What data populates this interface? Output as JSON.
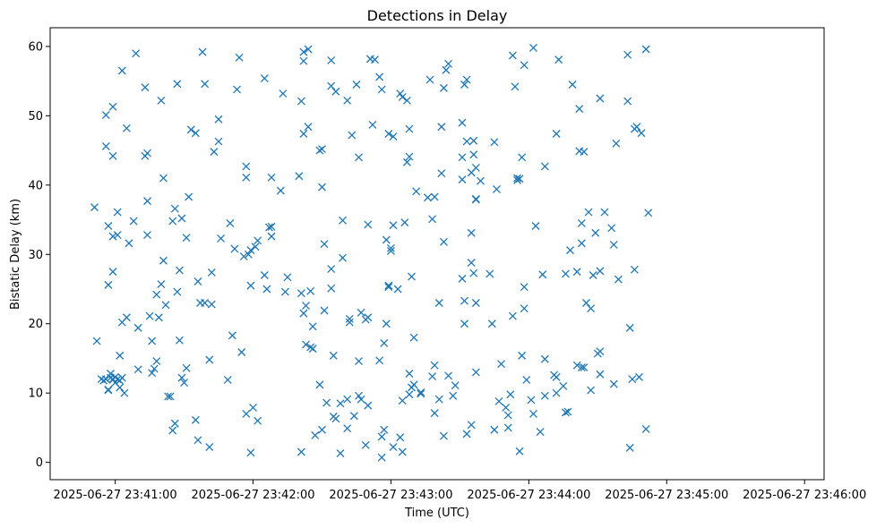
{
  "chart_data": {
    "type": "scatter",
    "title": "Detections in Delay",
    "xlabel": "Time (UTC)",
    "ylabel": "Bistatic Delay (km)",
    "marker": "x",
    "color": "#1f77b4",
    "x_unit": "seconds after 2025-06-27 23:41:00",
    "xlim": [
      -28.3,
      308.5
    ],
    "ylim": [
      -2.5,
      62.7
    ],
    "xticks": [
      {
        "value": 0,
        "label": "2025-06-27 23:41:00"
      },
      {
        "value": 60,
        "label": "2025-06-27 23:42:00"
      },
      {
        "value": 120,
        "label": "2025-06-27 23:43:00"
      },
      {
        "value": 180,
        "label": "2025-06-27 23:44:00"
      },
      {
        "value": 240,
        "label": "2025-06-27 23:45:00"
      },
      {
        "value": 300,
        "label": "2025-06-27 23:46:00"
      }
    ],
    "yticks": [
      {
        "value": 0,
        "label": "0"
      },
      {
        "value": 10,
        "label": "10"
      },
      {
        "value": 20,
        "label": "20"
      },
      {
        "value": 30,
        "label": "30"
      },
      {
        "value": 40,
        "label": "40"
      },
      {
        "value": 50,
        "label": "50"
      },
      {
        "value": 60,
        "label": "60"
      }
    ],
    "points": [
      [
        -9,
        36.8
      ],
      [
        -8,
        17.5
      ],
      [
        -6,
        12
      ],
      [
        -5,
        11.8
      ],
      [
        -4,
        12
      ],
      [
        -3,
        10.5
      ],
      [
        -2,
        12.2
      ],
      [
        -1,
        12
      ],
      [
        0,
        12.3
      ],
      [
        1,
        12
      ],
      [
        2,
        11.8
      ],
      [
        2,
        10.8
      ],
      [
        3,
        12.2
      ],
      [
        4,
        10
      ],
      [
        -3,
        10.4
      ],
      [
        -2,
        12.8
      ],
      [
        0,
        11.5
      ],
      [
        -1,
        11.9
      ],
      [
        -4,
        50.1
      ],
      [
        -4,
        45.6
      ],
      [
        -3,
        34.1
      ],
      [
        -3,
        25.6
      ],
      [
        -1,
        51.3
      ],
      [
        -1,
        44.2
      ],
      [
        -1,
        32.6
      ],
      [
        -1,
        27.5
      ],
      [
        1,
        36.1
      ],
      [
        1,
        32.8
      ],
      [
        2,
        15.4
      ],
      [
        3,
        20.2
      ],
      [
        3,
        56.5
      ],
      [
        5,
        48.2
      ],
      [
        5,
        20.9
      ],
      [
        6,
        31.6
      ],
      [
        8,
        34.8
      ],
      [
        9,
        59
      ],
      [
        10,
        13.4
      ],
      [
        10,
        19.4
      ],
      [
        13,
        54.1
      ],
      [
        13,
        44.2
      ],
      [
        14,
        44.6
      ],
      [
        14,
        37.7
      ],
      [
        14,
        32.8
      ],
      [
        15,
        21.1
      ],
      [
        16,
        17.5
      ],
      [
        16,
        12.9
      ],
      [
        17,
        13.5
      ],
      [
        18,
        24.2
      ],
      [
        18,
        14.6
      ],
      [
        19,
        20.9
      ],
      [
        20,
        52.2
      ],
      [
        20,
        25.7
      ],
      [
        21,
        41
      ],
      [
        21,
        29.1
      ],
      [
        22,
        22.7
      ],
      [
        23,
        9.5
      ],
      [
        24,
        9.5
      ],
      [
        25,
        4.6
      ],
      [
        25,
        34.8
      ],
      [
        26,
        5.6
      ],
      [
        26,
        36.6
      ],
      [
        27,
        24.6
      ],
      [
        27,
        54.6
      ],
      [
        28,
        27.7
      ],
      [
        28,
        17.6
      ],
      [
        29,
        12.2
      ],
      [
        29,
        35.2
      ],
      [
        30,
        11.5
      ],
      [
        31,
        13.6
      ],
      [
        31,
        32.4
      ],
      [
        32,
        38.3
      ],
      [
        33,
        48
      ],
      [
        35,
        47.5
      ],
      [
        35,
        6.1
      ],
      [
        36,
        3.2
      ],
      [
        36,
        26.1
      ],
      [
        37,
        23
      ],
      [
        38,
        59.2
      ],
      [
        39,
        54.6
      ],
      [
        39,
        23
      ],
      [
        41,
        14.8
      ],
      [
        41,
        2.2
      ],
      [
        42,
        27.4
      ],
      [
        42,
        22.8
      ],
      [
        43,
        44.8
      ],
      [
        45,
        49.5
      ],
      [
        45,
        46.3
      ],
      [
        46,
        32.3
      ],
      [
        49,
        11.9
      ],
      [
        50,
        34.5
      ],
      [
        51,
        18.3
      ],
      [
        52,
        30.8
      ],
      [
        53,
        53.8
      ],
      [
        54,
        58.4
      ],
      [
        55,
        15.9
      ],
      [
        56,
        29.7
      ],
      [
        57,
        7
      ],
      [
        57,
        42.7
      ],
      [
        57,
        41.1
      ],
      [
        58,
        30
      ],
      [
        59,
        25.5
      ],
      [
        59,
        1.4
      ],
      [
        59,
        30.6
      ],
      [
        60,
        7.9
      ],
      [
        61,
        31.1
      ],
      [
        62,
        32
      ],
      [
        62,
        6
      ],
      [
        65,
        27
      ],
      [
        65,
        55.4
      ],
      [
        66,
        25
      ],
      [
        67,
        33.9
      ],
      [
        68,
        41.1
      ],
      [
        68,
        32.6
      ],
      [
        68,
        34
      ],
      [
        72,
        39.2
      ],
      [
        73,
        53.2
      ],
      [
        74,
        24.6
      ],
      [
        75,
        26.7
      ],
      [
        80,
        41.3
      ],
      [
        81,
        52.1
      ],
      [
        81,
        24.4
      ],
      [
        81,
        1.5
      ],
      [
        82,
        59.2
      ],
      [
        82,
        57.9
      ],
      [
        82,
        47.4
      ],
      [
        82,
        21.5
      ],
      [
        83,
        17
      ],
      [
        83,
        22.6
      ],
      [
        84,
        59.6
      ],
      [
        84,
        48.4
      ],
      [
        85,
        24.7
      ],
      [
        85,
        16.6
      ],
      [
        86,
        16.4
      ],
      [
        86,
        19.6
      ],
      [
        87,
        3.9
      ],
      [
        89,
        45
      ],
      [
        89,
        11.2
      ],
      [
        90,
        45.2
      ],
      [
        90,
        39.7
      ],
      [
        90,
        4.7
      ],
      [
        91,
        31.5
      ],
      [
        91,
        21.9
      ],
      [
        92,
        8.6
      ],
      [
        94,
        54.3
      ],
      [
        94,
        58
      ],
      [
        94,
        27.9
      ],
      [
        94,
        25.1
      ],
      [
        95,
        15.4
      ],
      [
        95,
        6.6
      ],
      [
        96,
        53.5
      ],
      [
        96,
        6.3
      ],
      [
        98,
        8.5
      ],
      [
        98,
        1.3
      ],
      [
        99,
        29.5
      ],
      [
        99,
        34.9
      ],
      [
        101,
        52.2
      ],
      [
        101,
        9.1
      ],
      [
        101,
        4.9
      ],
      [
        102,
        20.2
      ],
      [
        102,
        20.7
      ],
      [
        103,
        47.2
      ],
      [
        104,
        6.7
      ],
      [
        105,
        54.5
      ],
      [
        106,
        44
      ],
      [
        106,
        14.6
      ],
      [
        106,
        9.6
      ],
      [
        107,
        9.1
      ],
      [
        107,
        21.6
      ],
      [
        109,
        2.5
      ],
      [
        109,
        20.6
      ],
      [
        110,
        34.3
      ],
      [
        110,
        20.9
      ],
      [
        110,
        8.2
      ],
      [
        111,
        58.2
      ],
      [
        112,
        48.7
      ],
      [
        113,
        58.1
      ],
      [
        115,
        14.7
      ],
      [
        115,
        55.6
      ],
      [
        116,
        53.8
      ],
      [
        116,
        0.7
      ],
      [
        116,
        3.7
      ],
      [
        117,
        4.7
      ],
      [
        117,
        17.2
      ],
      [
        118,
        32.1
      ],
      [
        118,
        20
      ],
      [
        119,
        25.3
      ],
      [
        119,
        47.4
      ],
      [
        119,
        25.5
      ],
      [
        120,
        30.9
      ],
      [
        120,
        30.5
      ],
      [
        121,
        34.2
      ],
      [
        121,
        47
      ],
      [
        121,
        2.2
      ],
      [
        123,
        25
      ],
      [
        124,
        3.6
      ],
      [
        124,
        53.2
      ],
      [
        125,
        52.7
      ],
      [
        125,
        8.9
      ],
      [
        125,
        1.5
      ],
      [
        126,
        34.6
      ],
      [
        127,
        52.2
      ],
      [
        127,
        43.3
      ],
      [
        128,
        48.1
      ],
      [
        128,
        12.8
      ],
      [
        128,
        44.1
      ],
      [
        128,
        9.8
      ],
      [
        129,
        10.8
      ],
      [
        129,
        26.8
      ],
      [
        130,
        18
      ],
      [
        130,
        11.2
      ],
      [
        131,
        39.1
      ],
      [
        133,
        9.9
      ],
      [
        133,
        10.1
      ],
      [
        136,
        38.2
      ],
      [
        137,
        55.2
      ],
      [
        138,
        12.4
      ],
      [
        138,
        35.1
      ],
      [
        139,
        38.3
      ],
      [
        139,
        14
      ],
      [
        139,
        7.1
      ],
      [
        141,
        23
      ],
      [
        141,
        9.1
      ],
      [
        142,
        41.7
      ],
      [
        142,
        48.4
      ],
      [
        143,
        54
      ],
      [
        143,
        31.8
      ],
      [
        143,
        3.8
      ],
      [
        144,
        56.6
      ],
      [
        145,
        57.5
      ],
      [
        145,
        12.5
      ],
      [
        147,
        9.6
      ],
      [
        148,
        11.1
      ],
      [
        151,
        49
      ],
      [
        151,
        44
      ],
      [
        151,
        40.8
      ],
      [
        151,
        26.5
      ],
      [
        152,
        54.5
      ],
      [
        152,
        23.3
      ],
      [
        152,
        20
      ],
      [
        153,
        55.2
      ],
      [
        153,
        46.3
      ],
      [
        153,
        4.1
      ],
      [
        155,
        41.8
      ],
      [
        155,
        28.8
      ],
      [
        155,
        33.1
      ],
      [
        155,
        5.4
      ],
      [
        156,
        46.4
      ],
      [
        156,
        44.4
      ],
      [
        156,
        27.3
      ],
      [
        157,
        42.5
      ],
      [
        157,
        38
      ],
      [
        157,
        37.9
      ],
      [
        157,
        23
      ],
      [
        157,
        13
      ],
      [
        159,
        40.6
      ],
      [
        163,
        27.2
      ],
      [
        164,
        20
      ],
      [
        165,
        4.7
      ],
      [
        165,
        46.2
      ],
      [
        166,
        39.4
      ],
      [
        167,
        8.8
      ],
      [
        168,
        14.2
      ],
      [
        170,
        7.9
      ],
      [
        171,
        6.8
      ],
      [
        171,
        5
      ],
      [
        172,
        9.8
      ],
      [
        173,
        58.7
      ],
      [
        173,
        21.1
      ],
      [
        174,
        54.2
      ],
      [
        175,
        41
      ],
      [
        175,
        40.7
      ],
      [
        176,
        40.9
      ],
      [
        176,
        1.6
      ],
      [
        177,
        44
      ],
      [
        177,
        15.4
      ],
      [
        178,
        25.3
      ],
      [
        178,
        57.3
      ],
      [
        178,
        22.2
      ],
      [
        179,
        11.9
      ],
      [
        181,
        9
      ],
      [
        182,
        59.8
      ],
      [
        182,
        7
      ],
      [
        183,
        34.1
      ],
      [
        185,
        4.4
      ],
      [
        186,
        27.1
      ],
      [
        187,
        9.6
      ],
      [
        187,
        42.7
      ],
      [
        187,
        14.9
      ],
      [
        191,
        12.6
      ],
      [
        192,
        47.4
      ],
      [
        192,
        12.3
      ],
      [
        192,
        10
      ],
      [
        193,
        58.1
      ],
      [
        195,
        11
      ],
      [
        196,
        7.2
      ],
      [
        196,
        27.2
      ],
      [
        197,
        7.3
      ],
      [
        198,
        30.6
      ],
      [
        199,
        54.5
      ],
      [
        201,
        27.5
      ],
      [
        201,
        14
      ],
      [
        202,
        51
      ],
      [
        202,
        44.9
      ],
      [
        203,
        34.5
      ],
      [
        203,
        31.6
      ],
      [
        203,
        13.7
      ],
      [
        204,
        13.7
      ],
      [
        204,
        44.8
      ],
      [
        205,
        23
      ],
      [
        206,
        36.1
      ],
      [
        207,
        22.2
      ],
      [
        207,
        10.4
      ],
      [
        208,
        27
      ],
      [
        209,
        33.1
      ],
      [
        210,
        15.7
      ],
      [
        211,
        52.5
      ],
      [
        211,
        27.6
      ],
      [
        211,
        16
      ],
      [
        211,
        12.7
      ],
      [
        213,
        36.1
      ],
      [
        216,
        33.8
      ],
      [
        217,
        31.4
      ],
      [
        217,
        11.3
      ],
      [
        218,
        46
      ],
      [
        219,
        26.4
      ],
      [
        223,
        58.8
      ],
      [
        223,
        52.1
      ],
      [
        224,
        2.1
      ],
      [
        224,
        19.4
      ],
      [
        225,
        12
      ],
      [
        226,
        27.8
      ],
      [
        226,
        48.1
      ],
      [
        227,
        48.4
      ],
      [
        228,
        12.3
      ],
      [
        229,
        47.5
      ],
      [
        231,
        59.6
      ],
      [
        231,
        4.8
      ],
      [
        232,
        36
      ]
    ]
  }
}
